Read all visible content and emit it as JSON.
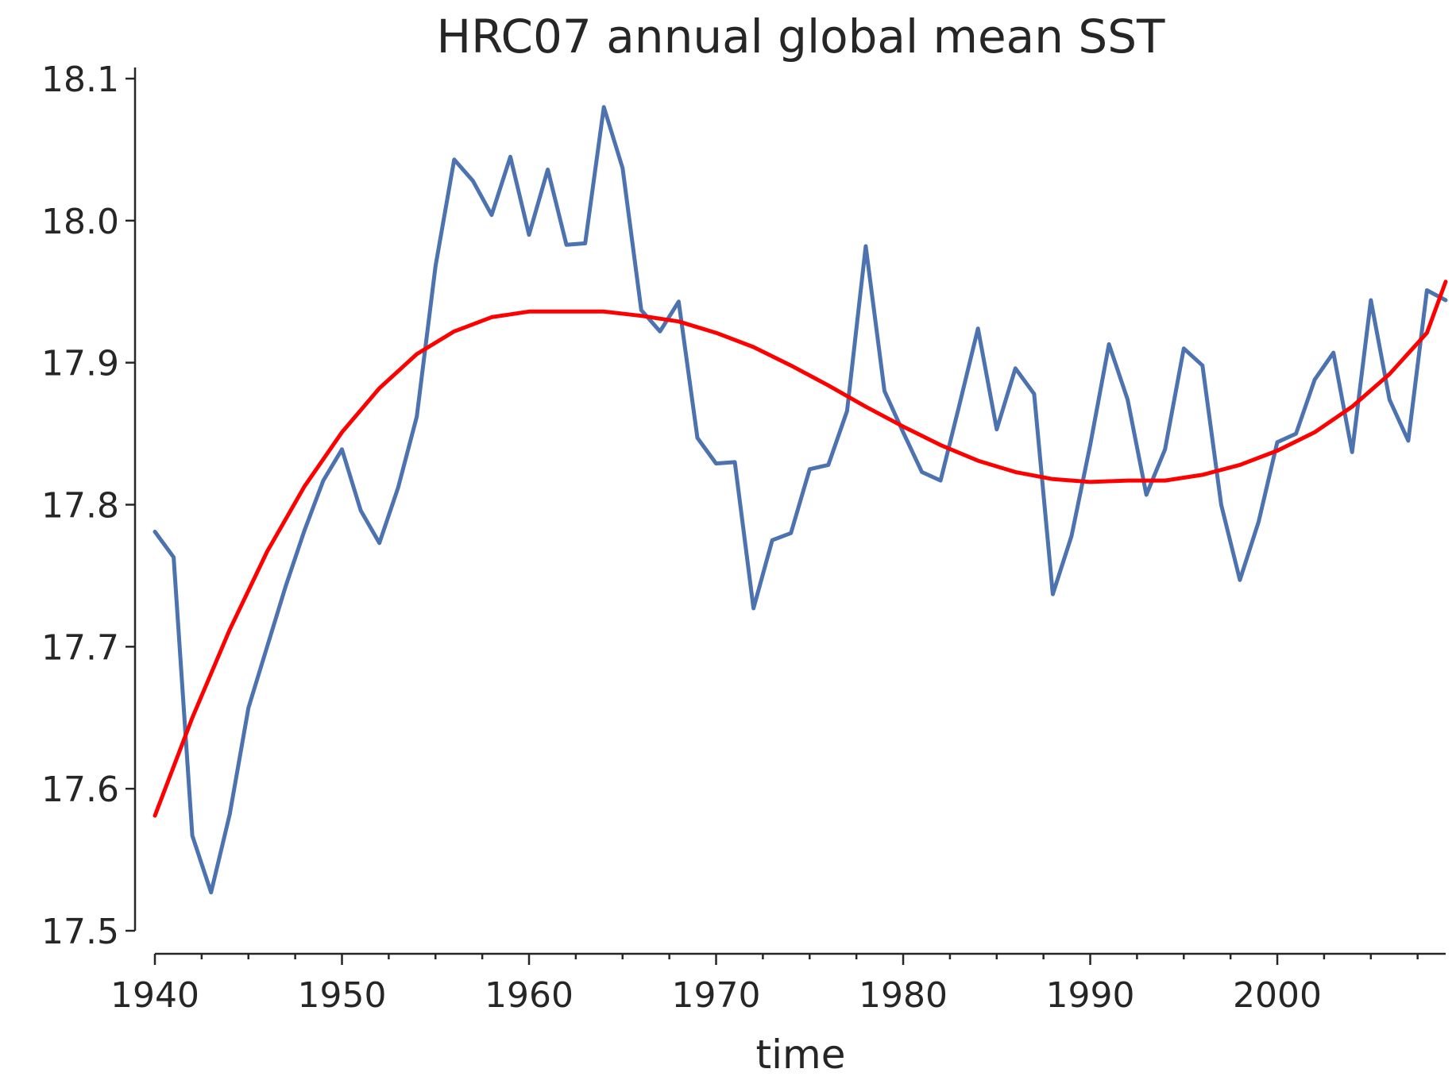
{
  "chart_data": {
    "type": "line",
    "title": "HRC07 annual global mean SST",
    "xlabel": "time",
    "ylabel": "",
    "xlim": [
      1940,
      2009
    ],
    "ylim": [
      17.5,
      18.1
    ],
    "xticks": [
      1940,
      1950,
      1960,
      1970,
      1980,
      1990,
      2000
    ],
    "xtick_labels": [
      "1940",
      "1950",
      "1960",
      "1970",
      "1980",
      "1990",
      "2000"
    ],
    "yticks": [
      17.5,
      17.6,
      17.7,
      17.8,
      17.9,
      18.0,
      18.1
    ],
    "ytick_labels": [
      "17.5",
      "17.6",
      "17.7",
      "17.8",
      "17.9",
      "18.0",
      "18.1"
    ],
    "grid": false,
    "series": [
      {
        "color": "#4c72b0",
        "x": [
          1940,
          1941,
          1942,
          1943,
          1944,
          1945,
          1946,
          1947,
          1948,
          1949,
          1950,
          1951,
          1952,
          1953,
          1954,
          1955,
          1956,
          1957,
          1958,
          1959,
          1960,
          1961,
          1962,
          1963,
          1964,
          1965,
          1966,
          1967,
          1968,
          1969,
          1970,
          1971,
          1972,
          1973,
          1974,
          1975,
          1976,
          1977,
          1978,
          1979,
          1980,
          1981,
          1982,
          1983,
          1984,
          1985,
          1986,
          1987,
          1988,
          1989,
          1990,
          1991,
          1992,
          1993,
          1994,
          1995,
          1996,
          1997,
          1998,
          1999,
          2000,
          2001,
          2002,
          2003,
          2004,
          2005,
          2006,
          2007,
          2008,
          2009
        ],
        "values": [
          17.781,
          17.763,
          17.567,
          17.527,
          17.582,
          17.657,
          17.7,
          17.743,
          17.782,
          17.817,
          17.839,
          17.796,
          17.773,
          17.812,
          17.862,
          17.968,
          18.043,
          18.028,
          18.004,
          18.045,
          17.99,
          18.036,
          17.983,
          17.984,
          18.08,
          18.037,
          17.937,
          17.922,
          17.943,
          17.847,
          17.829,
          17.83,
          17.727,
          17.775,
          17.78,
          17.825,
          17.828,
          17.866,
          17.982,
          17.88,
          17.851,
          17.823,
          17.817,
          17.87,
          17.924,
          17.853,
          17.896,
          17.878,
          17.737,
          17.778,
          17.842,
          17.913,
          17.874,
          17.807,
          17.839,
          17.91,
          17.898,
          17.8,
          17.747,
          17.788,
          17.844,
          17.85,
          17.888,
          17.907,
          17.837,
          17.944,
          17.874,
          17.845,
          17.951,
          17.944
        ]
      },
      {
        "color": "#ff0000",
        "fit": "cubic trend",
        "x": [
          1940,
          1942,
          1944,
          1946,
          1948,
          1950,
          1952,
          1954,
          1956,
          1958,
          1960,
          1962,
          1964,
          1966,
          1968,
          1970,
          1972,
          1974,
          1976,
          1978,
          1980,
          1982,
          1984,
          1986,
          1988,
          1990,
          1992,
          1994,
          1996,
          1998,
          2000,
          2002,
          2004,
          2006,
          2008,
          2009
        ],
        "values": [
          17.581,
          17.65,
          17.712,
          17.767,
          17.813,
          17.851,
          17.882,
          17.906,
          17.922,
          17.932,
          17.936,
          17.936,
          17.936,
          17.933,
          17.929,
          17.921,
          17.911,
          17.898,
          17.884,
          17.869,
          17.855,
          17.842,
          17.831,
          17.823,
          17.818,
          17.816,
          17.817,
          17.817,
          17.821,
          17.828,
          17.838,
          17.851,
          17.869,
          17.892,
          17.921,
          17.957
        ]
      }
    ]
  }
}
